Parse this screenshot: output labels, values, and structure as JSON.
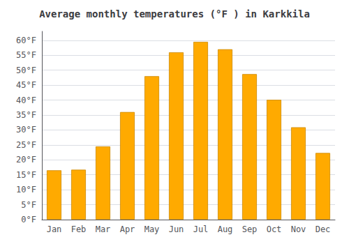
{
  "chart_data": {
    "type": "bar",
    "title": "Average monthly temperatures (°F ) in Karkkila",
    "categories": [
      "Jan",
      "Feb",
      "Mar",
      "Apr",
      "May",
      "Jun",
      "Jul",
      "Aug",
      "Sep",
      "Oct",
      "Nov",
      "Dec"
    ],
    "values": [
      16.5,
      16.7,
      24.5,
      36.0,
      48.0,
      56.0,
      59.5,
      57.0,
      48.7,
      40.1,
      30.9,
      22.3
    ],
    "color": "#FFAA00",
    "ylim": [
      0,
      63
    ],
    "yticks": [
      {
        "value": 0,
        "label": "0°F"
      },
      {
        "value": 5,
        "label": "5°F"
      },
      {
        "value": 10,
        "label": "10°F"
      },
      {
        "value": 15,
        "label": "15°F"
      },
      {
        "value": 20,
        "label": "20°F"
      },
      {
        "value": 25,
        "label": "25°F"
      },
      {
        "value": 30,
        "label": "30°F"
      },
      {
        "value": 35,
        "label": "35°F"
      },
      {
        "value": 40,
        "label": "40°F"
      },
      {
        "value": 45,
        "label": "45°F"
      },
      {
        "value": 50,
        "label": "50°F"
      },
      {
        "value": 55,
        "label": "55°F"
      },
      {
        "value": 60,
        "label": "60°F"
      }
    ],
    "grid": true
  }
}
